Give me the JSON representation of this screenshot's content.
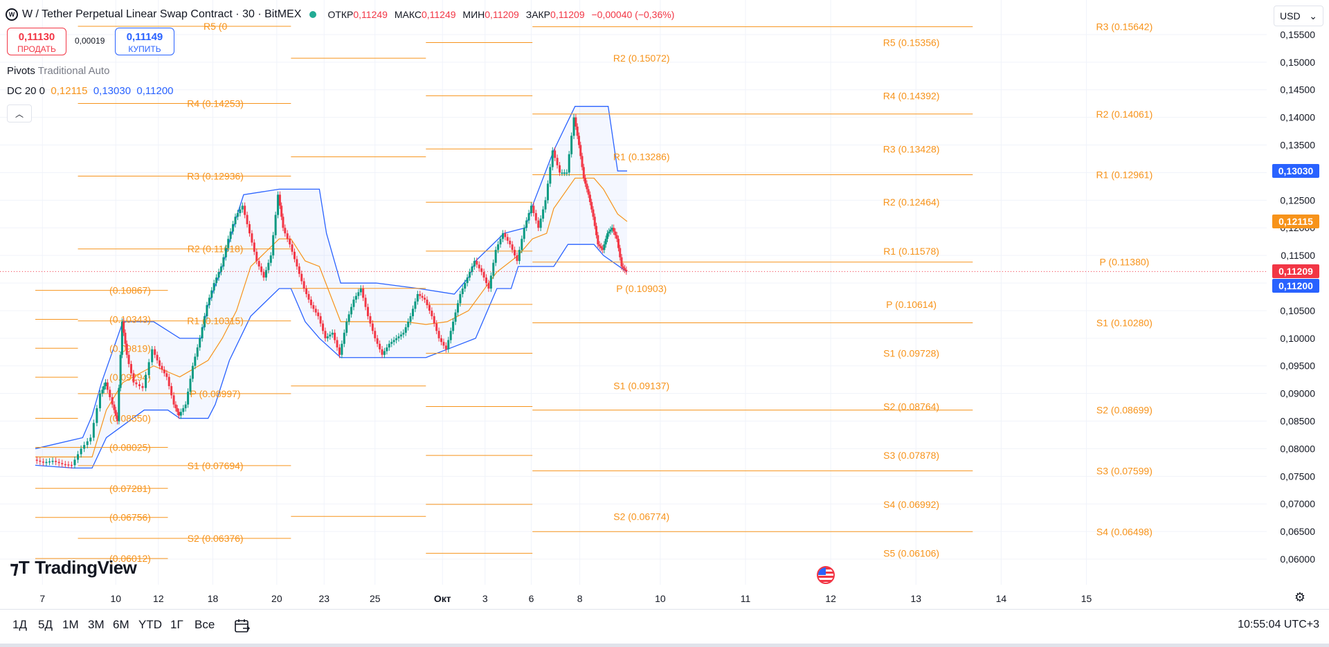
{
  "header": {
    "symbol_title": "W / Tether Perpetual Linear Swap Contract · 30 · BitMEX",
    "ohlc": [
      {
        "key": "ОТКР",
        "value": "0,11249"
      },
      {
        "key": "МАКС",
        "value": "0,11249"
      },
      {
        "key": "МИН",
        "value": "0,11209"
      },
      {
        "key": "ЗАКР",
        "value": "0,11209"
      }
    ],
    "change": "−0,00040 (−0,36%)"
  },
  "trade": {
    "sell_price": "0,11130",
    "sell_label": "ПРОДАТЬ",
    "spread": "0,00019",
    "buy_price": "0,11149",
    "buy_label": "КУПИТЬ"
  },
  "indicators": {
    "pivots_name": "Pivots",
    "pivots_params": "Traditional Auto",
    "dc_name": "DC 20 0",
    "dc_v1": "0,12115",
    "dc_v2": "0,13030",
    "dc_v3": "0,11200"
  },
  "currency": "USD",
  "price_tags": [
    {
      "label": "0,13030",
      "color": "#2962ff",
      "value": 0.1303
    },
    {
      "label": "0,12115",
      "color": "#f7931a",
      "value": 0.12115
    },
    {
      "label": "0,11209",
      "color": "#f23645",
      "value": 0.11209
    },
    {
      "label": "0,11200",
      "color": "#2962ff",
      "value": 0.112
    }
  ],
  "ranges": [
    "1Д",
    "5Д",
    "1М",
    "3М",
    "6М",
    "YTD",
    "1Г",
    "Все"
  ],
  "clock": "10:55:04 UTC+3",
  "brand": "TradingView",
  "colors": {
    "up": "#089981",
    "down": "#f23645",
    "pivot": "#f7931a",
    "donchian": "#2962ff",
    "axis_text": "#131722",
    "grid": "#f0f3fa"
  },
  "chart_data": {
    "type": "candlestick",
    "ylim": [
      0.0585,
      0.1575
    ],
    "yticks": [
      0.155,
      0.15,
      0.145,
      0.14,
      0.135,
      0.13,
      0.125,
      0.12,
      0.115,
      0.11,
      0.105,
      0.1,
      0.095,
      0.09,
      0.085,
      0.08,
      0.075,
      0.07,
      0.065,
      0.06
    ],
    "ytick_labels": [
      "0,15500",
      "0,15000",
      "0,14500",
      "0,14000",
      "0,13500",
      "0,13000",
      "0,12500",
      "0,12000",
      "0,11500",
      "0,11000",
      "0,10500",
      "0,10000",
      "0,09500",
      "0,09000",
      "0,08500",
      "0,08000",
      "0,07500",
      "0,07000",
      "0,06500",
      "0,06000"
    ],
    "xticks": [
      {
        "label": "7",
        "t": 0.3
      },
      {
        "label": "10",
        "t": 3.4
      },
      {
        "label": "12",
        "t": 5.2
      },
      {
        "label": "18",
        "t": 7.5
      },
      {
        "label": "20",
        "t": 10.2
      },
      {
        "label": "23",
        "t": 12.2
      },
      {
        "label": "25",
        "t": 14.35
      },
      {
        "label": "Окт",
        "t": 17.2
      },
      {
        "label": "3",
        "t": 19.0
      },
      {
        "label": "6",
        "t": 20.95
      },
      {
        "label": "8",
        "t": 23.0
      },
      {
        "label": "10",
        "t": 26.4
      },
      {
        "label": "11",
        "t": 30.0
      },
      {
        "label": "12",
        "t": 33.6
      },
      {
        "label": "13",
        "t": 37.2
      },
      {
        "label": "14",
        "t": 40.8
      },
      {
        "label": "15",
        "t": 44.4
      }
    ],
    "pivot_levels": [
      {
        "label": "R5 (0",
        "value": 0.1565,
        "t1": 1.8,
        "t2": 10.8
      },
      {
        "label": "R2 (0.15072)",
        "value": 0.15072,
        "t1": 10.8,
        "t2": 16.5
      },
      {
        "label": "R4 (0.14253)",
        "value": 0.14253,
        "t1": 1.8,
        "t2": 10.8
      },
      {
        "label": "R1 (0.13286)",
        "value": 0.13286,
        "t1": 10.8,
        "t2": 16.5
      },
      {
        "label": "R3 (0.12936)",
        "value": 0.12936,
        "t1": 1.8,
        "t2": 10.8
      },
      {
        "label": "R2 (0.11618)",
        "value": 0.11618,
        "t1": 1.8,
        "t2": 10.8
      },
      {
        "label": "P (0.10903)",
        "value": 0.10903,
        "t1": 10.8,
        "t2": 16.5
      },
      {
        "label": "R1 (0.10315)",
        "value": 0.10315,
        "t1": 1.8,
        "t2": 10.8
      },
      {
        "label": "S1 (0.09137)",
        "value": 0.09137,
        "t1": 10.8,
        "t2": 16.5
      },
      {
        "label": "P (0.08997)",
        "value": 0.08997,
        "t1": 1.8,
        "t2": 10.8
      },
      {
        "label": "S1 (0.07694)",
        "value": 0.07694,
        "t1": 1.8,
        "t2": 10.8
      },
      {
        "label": "S2 (0.06774)",
        "value": 0.06774,
        "t1": 10.8,
        "t2": 16.5
      },
      {
        "label": "S2 (0.06376)",
        "value": 0.06376,
        "t1": 1.8,
        "t2": 10.8
      },
      {
        "label": "R5 (0.15356)",
        "value": 0.15356,
        "t1": 16.5,
        "t2": 21.0
      },
      {
        "label": "R4 (0.14392)",
        "value": 0.14392,
        "t1": 16.5,
        "t2": 21.0
      },
      {
        "label": "R3 (0.13428)",
        "value": 0.13428,
        "t1": 16.5,
        "t2": 21.0
      },
      {
        "label": "R2 (0.12464)",
        "value": 0.12464,
        "t1": 16.5,
        "t2": 21.0
      },
      {
        "label": "R1 (0.11578)",
        "value": 0.11578,
        "t1": 16.5,
        "t2": 21.0
      },
      {
        "label": "P (0.10614)",
        "value": 0.10614,
        "t1": 16.5,
        "t2": 21.0
      },
      {
        "label": "S1 (0.09728)",
        "value": 0.09728,
        "t1": 16.5,
        "t2": 21.0
      },
      {
        "label": "S2 (0.08764)",
        "value": 0.08764,
        "t1": 16.5,
        "t2": 21.0
      },
      {
        "label": "S3 (0.07878)",
        "value": 0.07878,
        "t1": 16.5,
        "t2": 21.0
      },
      {
        "label": "S4 (0.06992)",
        "value": 0.06992,
        "t1": 16.5,
        "t2": 21.0
      },
      {
        "label": "S5 (0.06106)",
        "value": 0.06106,
        "t1": 16.5,
        "t2": 21.0
      },
      {
        "label": "R3 (0.15642)",
        "value": 0.15642,
        "t1": 21.0,
        "t2": 39.6
      },
      {
        "label": "R2 (0.14061)",
        "value": 0.14061,
        "t1": 21.0,
        "t2": 39.6
      },
      {
        "label": "R1 (0.12961)",
        "value": 0.12961,
        "t1": 21.0,
        "t2": 39.6
      },
      {
        "label": "P (0.11380)",
        "value": 0.1138,
        "t1": 21.0,
        "t2": 39.6
      },
      {
        "label": "S1 (0.10280)",
        "value": 0.1028,
        "t1": 21.0,
        "t2": 39.6
      },
      {
        "label": "S2 (0.08699)",
        "value": 0.08699,
        "t1": 21.0,
        "t2": 39.6
      },
      {
        "label": "S3 (0.07599)",
        "value": 0.07599,
        "t1": 21.0,
        "t2": 39.6
      },
      {
        "label": "S4 (0.06498)",
        "value": 0.06498,
        "t1": 21.0,
        "t2": 39.6
      },
      {
        "label": "(0.10867)",
        "value": 0.10867,
        "t1": 0.0,
        "t2": 5.6
      },
      {
        "label": "(0.10343)",
        "value": 0.10343,
        "t1": 0.0,
        "t2": 1.8
      },
      {
        "label": "(0.09819)",
        "value": 0.09819,
        "t1": 0.0,
        "t2": 1.8
      },
      {
        "label": "(0.09294)",
        "value": 0.09294,
        "t1": 0.0,
        "t2": 1.8
      },
      {
        "label": "(0.08550)",
        "value": 0.0855,
        "t1": 0.0,
        "t2": 1.8
      },
      {
        "label": "(0.08025)",
        "value": 0.08025,
        "t1": 0.0,
        "t2": 5.6
      },
      {
        "label": "(0.07281)",
        "value": 0.07281,
        "t1": 0.0,
        "t2": 5.6
      },
      {
        "label": "(0.06756)",
        "value": 0.06756,
        "t1": 0.0,
        "t2": 5.6
      },
      {
        "label": "(0.06012)",
        "value": 0.06012,
        "t1": 0.0,
        "t2": 5.6
      }
    ],
    "price_path": [
      [
        0.0,
        0.078
      ],
      [
        0.4,
        0.0775
      ],
      [
        0.8,
        0.0778
      ],
      [
        1.2,
        0.0772
      ],
      [
        1.6,
        0.077
      ],
      [
        2.0,
        0.08
      ],
      [
        2.4,
        0.082
      ],
      [
        2.8,
        0.09
      ],
      [
        3.0,
        0.092
      ],
      [
        3.3,
        0.088
      ],
      [
        3.5,
        0.085
      ],
      [
        3.7,
        0.103
      ],
      [
        3.9,
        0.097
      ],
      [
        4.2,
        0.092
      ],
      [
        4.6,
        0.091
      ],
      [
        5.0,
        0.098
      ],
      [
        5.3,
        0.095
      ],
      [
        5.6,
        0.093
      ],
      [
        5.9,
        0.088
      ],
      [
        6.1,
        0.086
      ],
      [
        6.4,
        0.088
      ],
      [
        6.7,
        0.095
      ],
      [
        7.0,
        0.1
      ],
      [
        7.3,
        0.106
      ],
      [
        7.6,
        0.11
      ],
      [
        7.9,
        0.113
      ],
      [
        8.2,
        0.118
      ],
      [
        8.5,
        0.122
      ],
      [
        8.8,
        0.124
      ],
      [
        9.1,
        0.119
      ],
      [
        9.4,
        0.114
      ],
      [
        9.7,
        0.111
      ],
      [
        10.0,
        0.115
      ],
      [
        10.3,
        0.126
      ],
      [
        10.5,
        0.12
      ],
      [
        10.8,
        0.117
      ],
      [
        11.1,
        0.113
      ],
      [
        11.4,
        0.109
      ],
      [
        11.7,
        0.106
      ],
      [
        12.0,
        0.104
      ],
      [
        12.3,
        0.1
      ],
      [
        12.6,
        0.101
      ],
      [
        12.9,
        0.097
      ],
      [
        13.2,
        0.103
      ],
      [
        13.5,
        0.107
      ],
      [
        13.8,
        0.109
      ],
      [
        14.1,
        0.104
      ],
      [
        14.4,
        0.1
      ],
      [
        14.7,
        0.097
      ],
      [
        15.0,
        0.099
      ],
      [
        15.3,
        0.1
      ],
      [
        15.6,
        0.101
      ],
      [
        15.9,
        0.104
      ],
      [
        16.2,
        0.108
      ],
      [
        16.5,
        0.107
      ],
      [
        16.8,
        0.104
      ],
      [
        17.1,
        0.1
      ],
      [
        17.4,
        0.098
      ],
      [
        17.7,
        0.103
      ],
      [
        18.0,
        0.108
      ],
      [
        18.3,
        0.111
      ],
      [
        18.6,
        0.114
      ],
      [
        18.9,
        0.112
      ],
      [
        19.2,
        0.109
      ],
      [
        19.5,
        0.116
      ],
      [
        19.8,
        0.119
      ],
      [
        20.1,
        0.117
      ],
      [
        20.4,
        0.114
      ],
      [
        20.7,
        0.12
      ],
      [
        21.0,
        0.124
      ],
      [
        21.3,
        0.12
      ],
      [
        21.6,
        0.125
      ],
      [
        21.9,
        0.134
      ],
      [
        22.2,
        0.13
      ],
      [
        22.5,
        0.13
      ],
      [
        22.8,
        0.14
      ],
      [
        23.0,
        0.135
      ],
      [
        23.2,
        0.129
      ],
      [
        23.4,
        0.126
      ],
      [
        23.6,
        0.122
      ],
      [
        23.8,
        0.117
      ],
      [
        24.0,
        0.116
      ],
      [
        24.2,
        0.119
      ],
      [
        24.4,
        0.12
      ],
      [
        24.6,
        0.118
      ],
      [
        24.8,
        0.113
      ],
      [
        25.0,
        0.11209
      ]
    ],
    "donchian_upper": [
      [
        0.0,
        0.08
      ],
      [
        2.0,
        0.082
      ],
      [
        2.4,
        0.086
      ],
      [
        2.8,
        0.092
      ],
      [
        3.7,
        0.103
      ],
      [
        5.0,
        0.103
      ],
      [
        6.1,
        0.1
      ],
      [
        7.0,
        0.1
      ],
      [
        7.3,
        0.106
      ],
      [
        7.9,
        0.113
      ],
      [
        8.5,
        0.122
      ],
      [
        8.8,
        0.126
      ],
      [
        10.3,
        0.127
      ],
      [
        12.0,
        0.127
      ],
      [
        12.3,
        0.119
      ],
      [
        12.9,
        0.11
      ],
      [
        14.4,
        0.11
      ],
      [
        16.2,
        0.109
      ],
      [
        17.7,
        0.108
      ],
      [
        18.3,
        0.111
      ],
      [
        18.6,
        0.114
      ],
      [
        19.8,
        0.119
      ],
      [
        20.7,
        0.12
      ],
      [
        21.0,
        0.124
      ],
      [
        21.9,
        0.134
      ],
      [
        22.8,
        0.142
      ],
      [
        24.2,
        0.142
      ],
      [
        24.6,
        0.1303
      ],
      [
        25.0,
        0.1303
      ]
    ],
    "donchian_lower": [
      [
        0.0,
        0.077
      ],
      [
        1.6,
        0.0765
      ],
      [
        2.4,
        0.0765
      ],
      [
        3.0,
        0.082
      ],
      [
        4.6,
        0.087
      ],
      [
        5.6,
        0.087
      ],
      [
        6.1,
        0.0855
      ],
      [
        7.3,
        0.0855
      ],
      [
        7.6,
        0.088
      ],
      [
        8.2,
        0.096
      ],
      [
        9.1,
        0.104
      ],
      [
        10.3,
        0.109
      ],
      [
        10.8,
        0.109
      ],
      [
        11.4,
        0.103
      ],
      [
        12.0,
        0.1
      ],
      [
        12.9,
        0.0965
      ],
      [
        14.7,
        0.0965
      ],
      [
        16.5,
        0.0965
      ],
      [
        17.4,
        0.098
      ],
      [
        18.6,
        0.1
      ],
      [
        19.5,
        0.109
      ],
      [
        20.1,
        0.109
      ],
      [
        20.4,
        0.113
      ],
      [
        21.9,
        0.113
      ],
      [
        22.5,
        0.117
      ],
      [
        23.6,
        0.117
      ],
      [
        24.0,
        0.115
      ],
      [
        25.0,
        0.112
      ]
    ],
    "donchian_mid": [
      [
        0.0,
        0.0785
      ],
      [
        1.6,
        0.0785
      ],
      [
        2.4,
        0.0785
      ],
      [
        3.0,
        0.087
      ],
      [
        3.7,
        0.092
      ],
      [
        5.0,
        0.095
      ],
      [
        6.1,
        0.093
      ],
      [
        7.3,
        0.096
      ],
      [
        7.9,
        0.1
      ],
      [
        8.5,
        0.105
      ],
      [
        9.1,
        0.113
      ],
      [
        10.3,
        0.118
      ],
      [
        10.8,
        0.118
      ],
      [
        11.4,
        0.114
      ],
      [
        12.0,
        0.113
      ],
      [
        12.9,
        0.103
      ],
      [
        14.4,
        0.103
      ],
      [
        15.6,
        0.103
      ],
      [
        16.5,
        0.1025
      ],
      [
        17.4,
        0.103
      ],
      [
        18.3,
        0.105
      ],
      [
        19.5,
        0.112
      ],
      [
        20.4,
        0.115
      ],
      [
        21.0,
        0.118
      ],
      [
        21.6,
        0.119
      ],
      [
        21.9,
        0.1235
      ],
      [
        22.8,
        0.129
      ],
      [
        23.6,
        0.129
      ],
      [
        24.0,
        0.127
      ],
      [
        24.6,
        0.1225
      ],
      [
        25.0,
        0.12115
      ]
    ],
    "current_price": 0.11209
  }
}
